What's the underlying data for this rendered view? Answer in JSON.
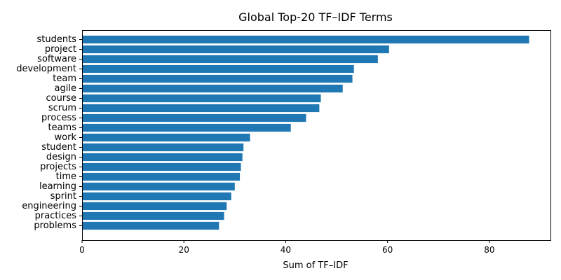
{
  "chart_data": {
    "type": "bar",
    "orientation": "horizontal",
    "title": "Global Top-20 TF–IDF Terms",
    "xlabel": "Sum of TF–IDF",
    "ylabel": "",
    "xlim": [
      0,
      92
    ],
    "xticks": [
      0,
      20,
      40,
      60,
      80
    ],
    "grid": false,
    "bar_color": "#1f77b4",
    "categories": [
      "students",
      "project",
      "software",
      "development",
      "team",
      "agile",
      "course",
      "scrum",
      "process",
      "teams",
      "work",
      "student",
      "design",
      "projects",
      "time",
      "learning",
      "sprint",
      "engineering",
      "practices",
      "problems"
    ],
    "values": [
      87.8,
      60.3,
      58.1,
      53.4,
      53.1,
      51.2,
      46.9,
      46.6,
      44.0,
      41.0,
      33.0,
      31.7,
      31.5,
      31.2,
      31.0,
      30.0,
      29.3,
      28.4,
      27.9,
      26.9
    ]
  }
}
